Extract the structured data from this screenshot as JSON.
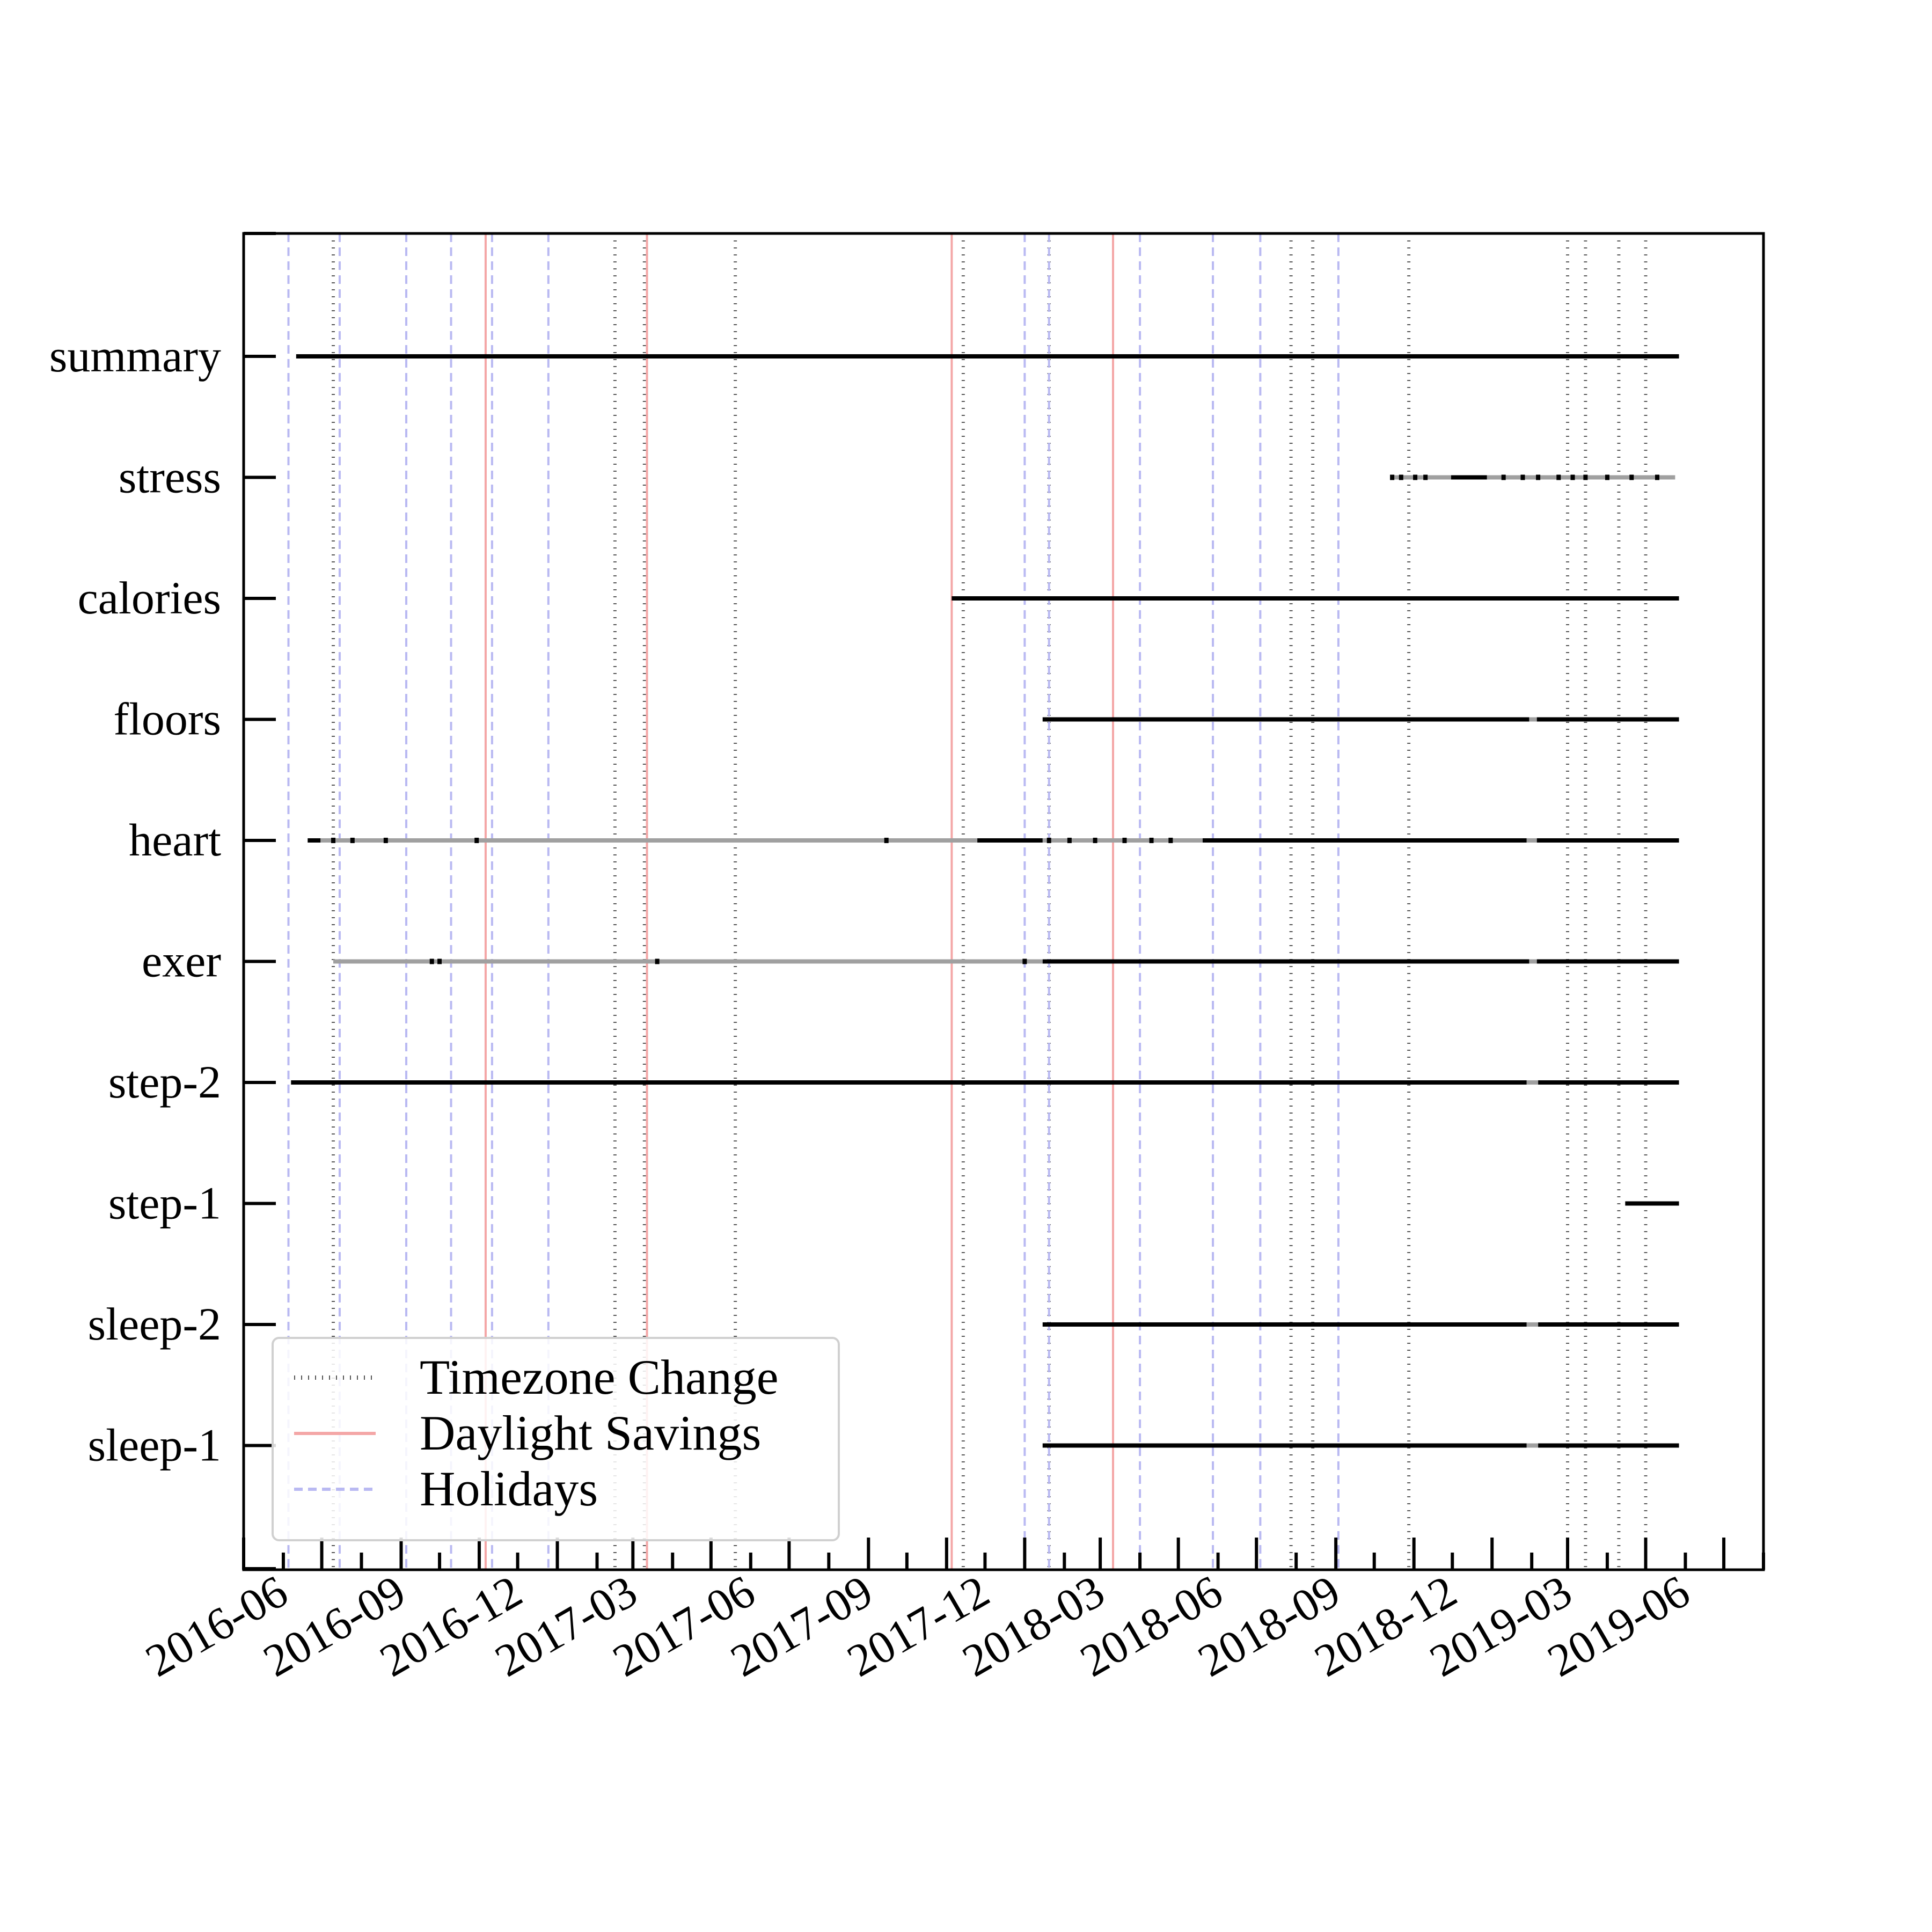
{
  "chart_data": {
    "type": "timeline",
    "title": "",
    "xlabel": "",
    "ylabel": "",
    "xlim": [
      "2016-05-01",
      "2019-08-01"
    ],
    "xticks": [
      "2016-06",
      "2016-09",
      "2016-12",
      "2017-03",
      "2017-06",
      "2017-09",
      "2017-12",
      "2018-03",
      "2018-06",
      "2018-09",
      "2018-12",
      "2019-03",
      "2019-06"
    ],
    "categories": [
      "summary",
      "stress",
      "calories",
      "floors",
      "heart",
      "exer",
      "step-2",
      "step-1",
      "sleep-2",
      "sleep-1"
    ],
    "series": [
      {
        "name": "summary",
        "solid": [
          [
            "2016-06-11",
            "2019-05-27"
          ]
        ],
        "sparse": [],
        "points": []
      },
      {
        "name": "stress",
        "solid": [
          [
            "2018-11-30",
            "2018-12-28"
          ]
        ],
        "sparse": [
          [
            "2018-10-15",
            "2018-11-30"
          ],
          [
            "2018-12-28",
            "2019-05-24"
          ]
        ],
        "points": [
          "2018-10-15",
          "2018-10-22",
          "2018-11-02",
          "2018-11-10",
          "2019-01-10",
          "2019-01-25",
          "2019-02-06",
          "2019-02-22",
          "2019-03-05",
          "2019-03-15",
          "2019-04-01",
          "2019-04-20",
          "2019-05-10"
        ]
      },
      {
        "name": "calories",
        "solid": [
          [
            "2017-11-05",
            "2019-05-27"
          ]
        ],
        "sparse": [],
        "points": []
      },
      {
        "name": "floors",
        "solid": [
          [
            "2018-01-15",
            "2019-01-30"
          ],
          [
            "2019-02-05",
            "2019-05-27"
          ]
        ],
        "sparse": [
          [
            "2019-01-30",
            "2019-02-05"
          ]
        ],
        "points": []
      },
      {
        "name": "heart",
        "solid": [
          [
            "2016-06-20",
            "2016-06-30"
          ],
          [
            "2017-11-25",
            "2018-01-15"
          ],
          [
            "2018-05-20",
            "2019-01-28"
          ],
          [
            "2019-02-05",
            "2019-05-27"
          ]
        ],
        "sparse": [
          [
            "2016-06-30",
            "2017-11-25"
          ],
          [
            "2018-01-15",
            "2018-05-20"
          ],
          [
            "2019-01-28",
            "2019-02-05"
          ]
        ],
        "points": [
          "2016-07-10",
          "2016-07-25",
          "2016-08-20",
          "2016-10-30",
          "2017-09-15",
          "2018-01-20",
          "2018-02-05",
          "2018-02-25",
          "2018-03-20",
          "2018-04-10",
          "2018-04-25"
        ]
      },
      {
        "name": "exer",
        "solid": [
          [
            "2018-01-15",
            "2019-01-30"
          ],
          [
            "2019-02-05",
            "2019-05-27"
          ]
        ],
        "sparse": [
          [
            "2016-07-10",
            "2018-01-15"
          ],
          [
            "2019-01-30",
            "2019-02-05"
          ]
        ],
        "points": [
          "2016-09-25",
          "2016-10-01",
          "2017-03-20",
          "2018-01-01"
        ]
      },
      {
        "name": "step-2",
        "solid": [
          [
            "2016-06-07",
            "2019-01-28"
          ],
          [
            "2019-02-06",
            "2019-05-27"
          ]
        ],
        "sparse": [
          [
            "2019-01-28",
            "2019-02-06"
          ]
        ],
        "points": []
      },
      {
        "name": "step-1",
        "solid": [
          [
            "2019-04-15",
            "2019-05-27"
          ]
        ],
        "sparse": [],
        "points": []
      },
      {
        "name": "sleep-2",
        "solid": [
          [
            "2018-01-15",
            "2019-01-28"
          ],
          [
            "2019-02-06",
            "2019-05-27"
          ]
        ],
        "sparse": [
          [
            "2019-01-28",
            "2019-02-06"
          ]
        ],
        "points": []
      },
      {
        "name": "sleep-1",
        "solid": [
          [
            "2018-01-15",
            "2019-01-28"
          ],
          [
            "2019-02-06",
            "2019-05-27"
          ]
        ],
        "sparse": [
          [
            "2019-01-28",
            "2019-02-06"
          ]
        ],
        "points": []
      }
    ],
    "vlines": [
      {
        "kind": "Timezone Change",
        "dates": [
          "2016-07-10",
          "2017-02-15",
          "2017-03-10",
          "2017-05-20",
          "2017-11-14",
          "2018-01-20",
          "2018-07-28",
          "2018-08-14",
          "2018-10-28",
          "2019-03-01",
          "2019-03-15",
          "2019-04-10",
          "2019-05-01"
        ]
      },
      {
        "kind": "Daylight Savings",
        "dates": [
          "2016-11-06",
          "2017-03-12",
          "2017-11-05",
          "2018-03-11"
        ]
      },
      {
        "kind": "Holidays",
        "dates": [
          "2016-06-05",
          "2016-07-15",
          "2016-09-05",
          "2016-10-10",
          "2016-11-11",
          "2016-12-25",
          "2018-01-01",
          "2018-01-20",
          "2018-04-01",
          "2018-05-28",
          "2018-07-04",
          "2018-09-03"
        ]
      }
    ],
    "legend": {
      "position": "lower-left",
      "entries": [
        {
          "label": "Timezone Change",
          "style": "dotted",
          "color": "#555555"
        },
        {
          "label": "Daylight Savings",
          "style": "solid",
          "color": "#f4a6a6"
        },
        {
          "label": "Holidays",
          "style": "dashed",
          "color": "#b9b9f2"
        }
      ]
    },
    "colors": {
      "observed": "#000000",
      "sparse": "#a0a0a0",
      "timezone": "#555555",
      "dst": "#f4a6a6",
      "holiday": "#b9b9f2"
    }
  }
}
